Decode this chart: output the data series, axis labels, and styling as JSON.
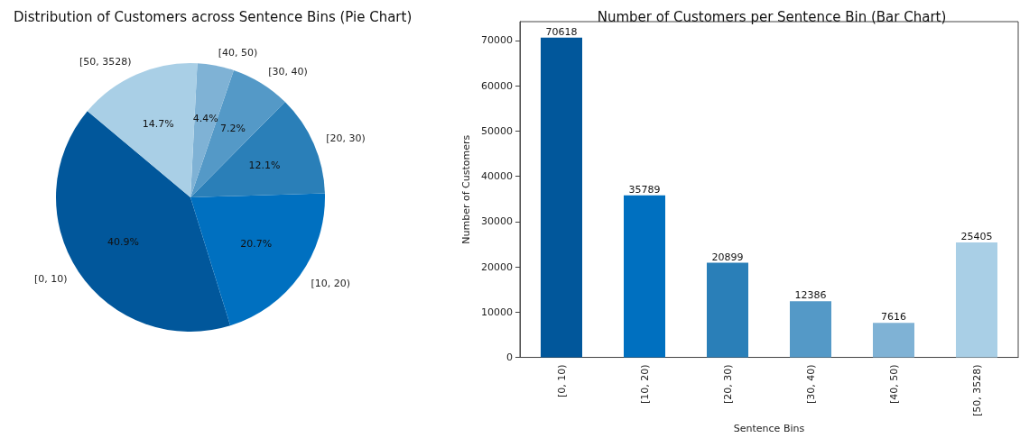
{
  "chart_data": [
    {
      "type": "pie",
      "title": "Distribution of Customers across Sentence Bins (Pie Chart)",
      "categories": [
        "[0, 10)",
        "[10, 20)",
        "[20, 30)",
        "[30, 40)",
        "[40, 50)",
        "[50, 3528)"
      ],
      "values": [
        40.9,
        20.7,
        12.1,
        7.2,
        4.4,
        14.7
      ],
      "value_labels": [
        "40.9%",
        "20.7%",
        "12.1%",
        "7.2%",
        "4.4%",
        "14.7%"
      ],
      "colors": [
        "#01579b",
        "#0070c0",
        "#2a7fb8",
        "#5499c7",
        "#7fb2d5",
        "#a9cfe6"
      ]
    },
    {
      "type": "bar",
      "title": "Number of Customers per Sentence Bin (Bar Chart)",
      "xlabel": "Sentence Bins",
      "ylabel": "Number of Customers",
      "categories": [
        "[0, 10)",
        "[10, 20)",
        "[20, 30)",
        "[30, 40)",
        "[40, 50)",
        "[50, 3528)"
      ],
      "values": [
        70618,
        35789,
        20899,
        12386,
        7616,
        25405
      ],
      "colors": [
        "#01579b",
        "#0070c0",
        "#2a7fb8",
        "#5499c7",
        "#7fb2d5",
        "#a9cfe6"
      ],
      "ylim": [
        0,
        74150
      ],
      "yticks": [
        0,
        10000,
        20000,
        30000,
        40000,
        50000,
        60000,
        70000
      ],
      "data_labels": true,
      "grid": false
    }
  ]
}
